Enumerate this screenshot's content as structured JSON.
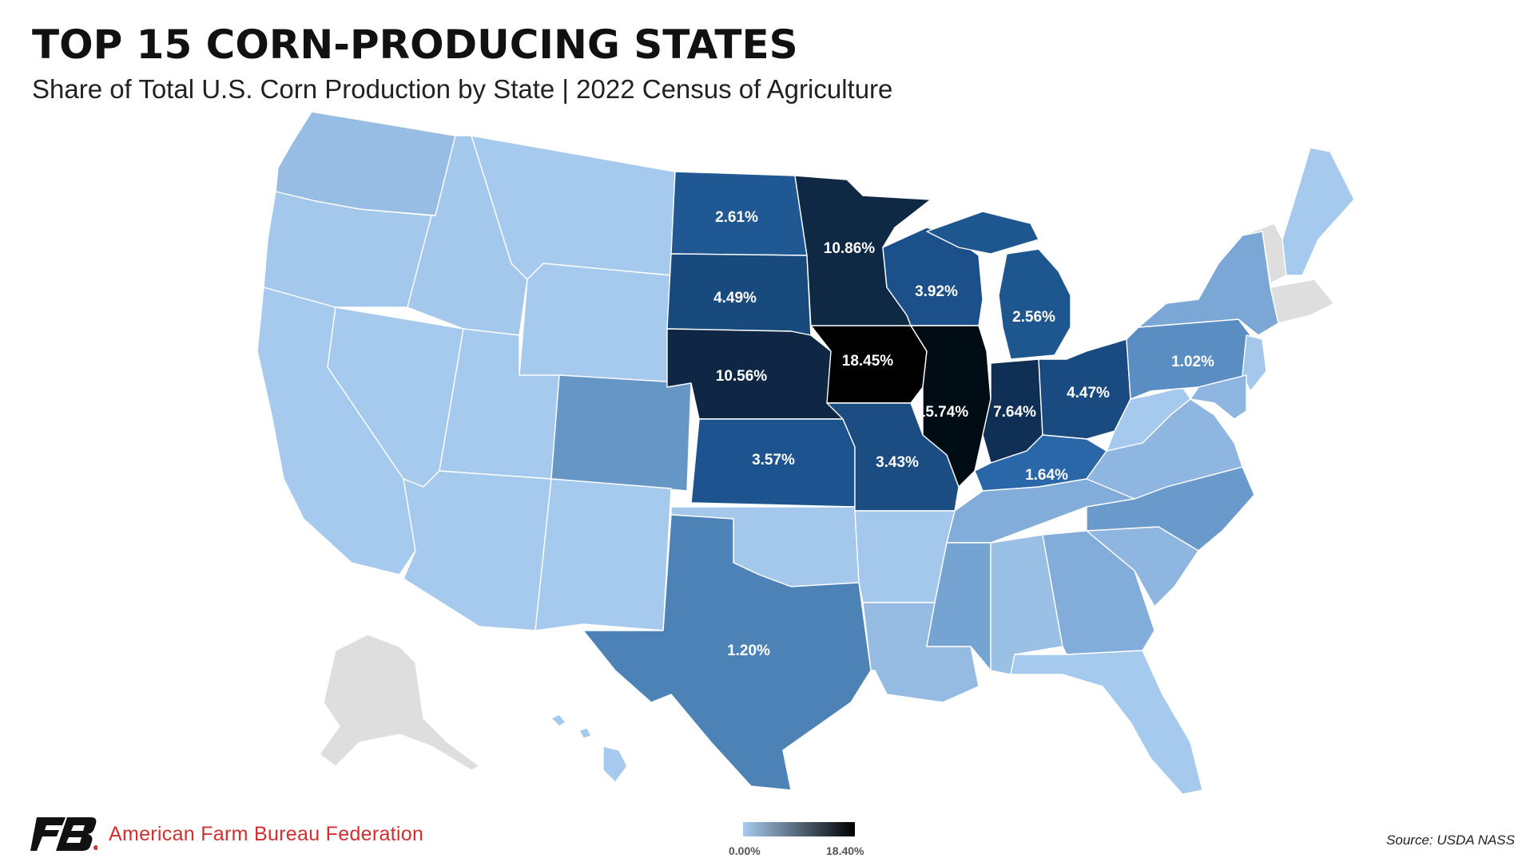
{
  "header": {
    "title": "TOP 15 CORN-PRODUCING STATES",
    "subtitle": "Share of Total U.S. Corn Production by State | 2022 Census of Agriculture"
  },
  "colors": {
    "no_data": "#dedede",
    "scale_low": "#a7cbee",
    "scale_high": "#000000"
  },
  "legend": {
    "min_label": "0.00%",
    "max_label": "18.40%",
    "min_value": 0,
    "max_value": 18.4
  },
  "states": [
    {
      "name": "Iowa",
      "value": 18.45,
      "label": "18.45%"
    },
    {
      "name": "Illinois",
      "value": 15.74,
      "label": "15.74%"
    },
    {
      "name": "Minnesota",
      "value": 10.86,
      "label": "10.86%"
    },
    {
      "name": "Nebraska",
      "value": 10.56,
      "label": "10.56%"
    },
    {
      "name": "Indiana",
      "value": 7.64,
      "label": "7.64%"
    },
    {
      "name": "South Dakota",
      "value": 4.49,
      "label": "4.49%"
    },
    {
      "name": "Ohio",
      "value": 4.47,
      "label": "4.47%"
    },
    {
      "name": "Wisconsin",
      "value": 3.92,
      "label": "3.92%"
    },
    {
      "name": "Kansas",
      "value": 3.57,
      "label": "3.57%"
    },
    {
      "name": "Missouri",
      "value": 3.43,
      "label": "3.43%"
    },
    {
      "name": "North Dakota",
      "value": 2.61,
      "label": "2.61%"
    },
    {
      "name": "Michigan",
      "value": 2.56,
      "label": "2.56%"
    },
    {
      "name": "Kentucky",
      "value": 1.64,
      "label": "1.64%"
    },
    {
      "name": "Texas",
      "value": 1.2,
      "label": "1.20%"
    },
    {
      "name": "Pennsylvania",
      "value": 1.02,
      "label": "1.02%"
    }
  ],
  "footer": {
    "organization": "American Farm Bureau Federation",
    "source": "Source: USDA NASS"
  }
}
